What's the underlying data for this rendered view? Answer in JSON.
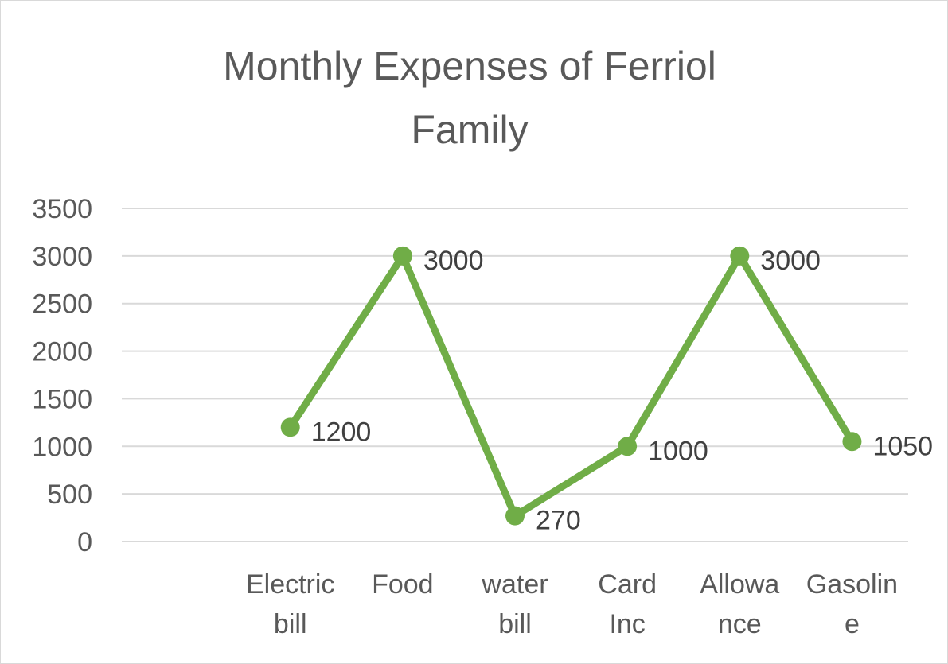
{
  "chart_data": {
    "type": "line",
    "title_lines": [
      "Monthly Expenses of Ferriol",
      "Family"
    ],
    "categories": [
      "",
      "Electric bill",
      "Food",
      "water bill",
      "Card Inc",
      "Allowance",
      "Gasoline"
    ],
    "category_label_lines": [
      [],
      [
        "Electric",
        "bill"
      ],
      [
        "Food"
      ],
      [
        "water",
        "bill"
      ],
      [
        "Card",
        "Inc"
      ],
      [
        "Allowa",
        "nce"
      ],
      [
        "Gasolin",
        "e"
      ]
    ],
    "series": [
      {
        "values": [
          null,
          1200,
          3000,
          270,
          1000,
          3000,
          1050
        ],
        "color": "#70ad47"
      }
    ],
    "data_labels": [
      "",
      "1200",
      "3000",
      "270",
      "1000",
      "3000",
      "1050"
    ],
    "y_ticks": [
      "0",
      "500",
      "1000",
      "1500",
      "2000",
      "2500",
      "3000",
      "3500"
    ],
    "ylim": [
      0,
      3500
    ],
    "xlabel": "",
    "ylabel": "",
    "grid": true,
    "legend": "none",
    "colors": {
      "gridline": "#d9d9d9",
      "text": "#595959",
      "label_text": "#404040"
    }
  }
}
